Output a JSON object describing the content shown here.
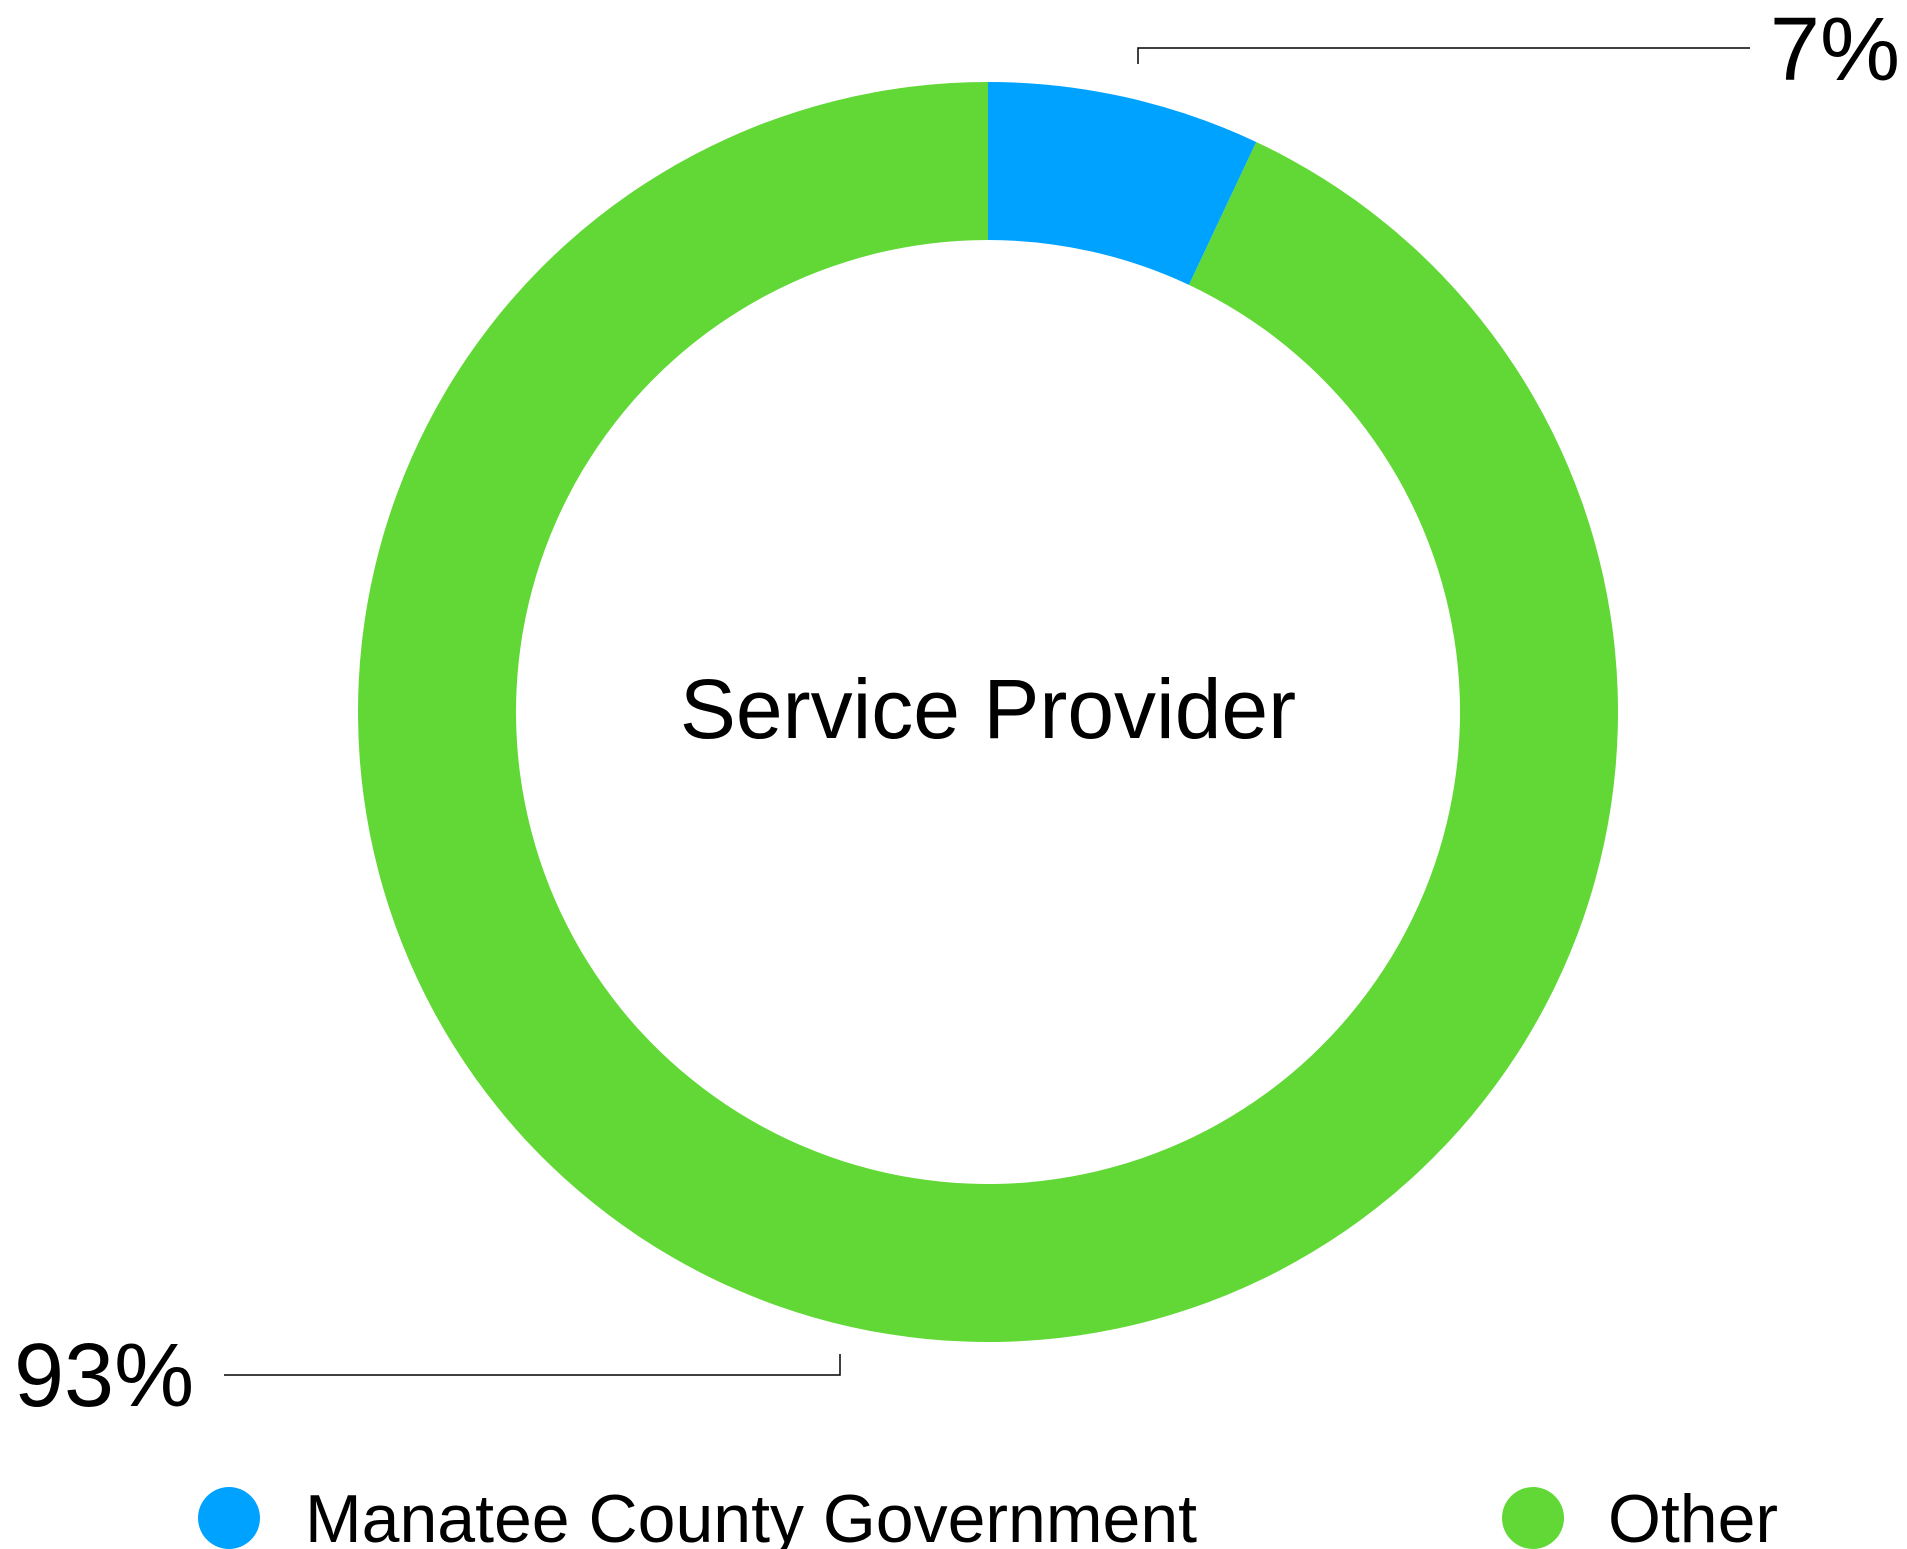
{
  "chart_data": {
    "type": "donut",
    "center_label": "Service Provider",
    "slices": [
      {
        "name": "Manatee County Government",
        "value": 7,
        "label": "7%",
        "color": "#00A2FF"
      },
      {
        "name": "Other",
        "value": 93,
        "label": "93%",
        "color": "#61D836"
      }
    ],
    "legend_position": "bottom"
  }
}
